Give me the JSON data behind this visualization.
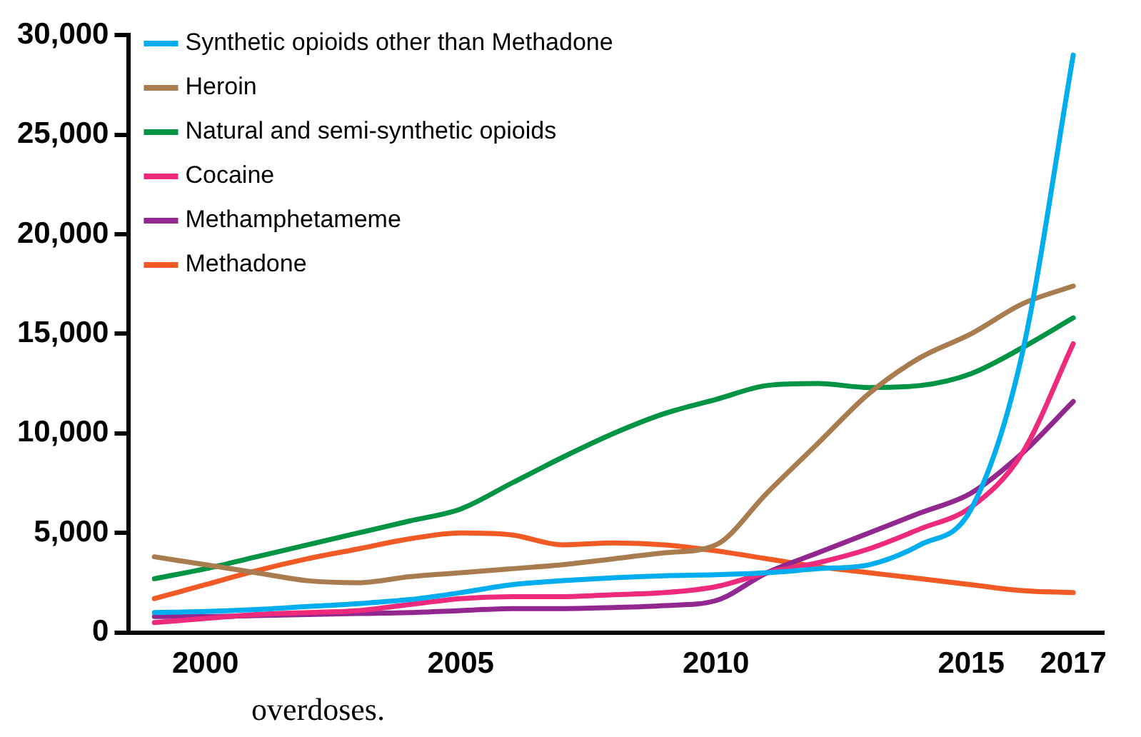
{
  "chart_data": {
    "type": "line",
    "x": [
      1999,
      2000,
      2001,
      2002,
      2003,
      2004,
      2005,
      2006,
      2007,
      2008,
      2009,
      2010,
      2011,
      2012,
      2013,
      2014,
      2015,
      2016,
      2017
    ],
    "series": [
      {
        "name": "Synthetic opioids other than Methadone",
        "color": "#00aeef",
        "values": [
          1000,
          1050,
          1150,
          1300,
          1450,
          1650,
          2000,
          2400,
          2600,
          2750,
          2850,
          2900,
          3000,
          3200,
          3400,
          4400,
          6200,
          14000,
          29000
        ]
      },
      {
        "name": "Heroin",
        "color": "#a97c50",
        "values": [
          3800,
          3400,
          3000,
          2600,
          2500,
          2800,
          3000,
          3200,
          3400,
          3700,
          4000,
          4400,
          7000,
          9500,
          12000,
          13800,
          15000,
          16500,
          17400
        ]
      },
      {
        "name": "Natural and semi-synthetic opioids",
        "color": "#009444",
        "values": [
          2700,
          3200,
          3800,
          4400,
          5000,
          5600,
          6200,
          7500,
          8800,
          10000,
          11000,
          11700,
          12400,
          12500,
          12300,
          12400,
          13000,
          14300,
          15800
        ]
      },
      {
        "name": "Cocaine",
        "color": "#ed2a7b",
        "values": [
          500,
          700,
          900,
          1000,
          1100,
          1400,
          1700,
          1800,
          1800,
          1900,
          2000,
          2300,
          3000,
          3500,
          4200,
          5200,
          6300,
          9000,
          14500
        ]
      },
      {
        "name": "Methamphetameme",
        "color": "#92278f",
        "values": [
          800,
          800,
          850,
          900,
          950,
          1000,
          1100,
          1200,
          1200,
          1250,
          1350,
          1600,
          3000,
          4000,
          5000,
          6000,
          7000,
          9000,
          11600
        ]
      },
      {
        "name": "Methadone",
        "color": "#f15a24",
        "values": [
          1700,
          2400,
          3100,
          3700,
          4200,
          4700,
          5000,
          4900,
          4400,
          4500,
          4400,
          4100,
          3700,
          3300,
          3000,
          2700,
          2400,
          2100,
          2000
        ]
      }
    ],
    "xlim": [
      1998.5,
      2017.6
    ],
    "xticks": [
      2000,
      2005,
      2010,
      2015,
      2017
    ],
    "ylim": [
      0,
      30000
    ],
    "yticks": [
      {
        "value": 0,
        "label": "0"
      },
      {
        "value": 5000,
        "label": "5,000"
      },
      {
        "value": 10000,
        "label": "10,000"
      },
      {
        "value": 15000,
        "label": "15,000"
      },
      {
        "value": 20000,
        "label": "20,000"
      },
      {
        "value": 25000,
        "label": "25,000"
      },
      {
        "value": 30000,
        "label": "30,000"
      }
    ],
    "grid": false,
    "legend": "top left",
    "marker": "none",
    "line_style": "solid",
    "annotations": [
      "overdoses."
    ]
  }
}
